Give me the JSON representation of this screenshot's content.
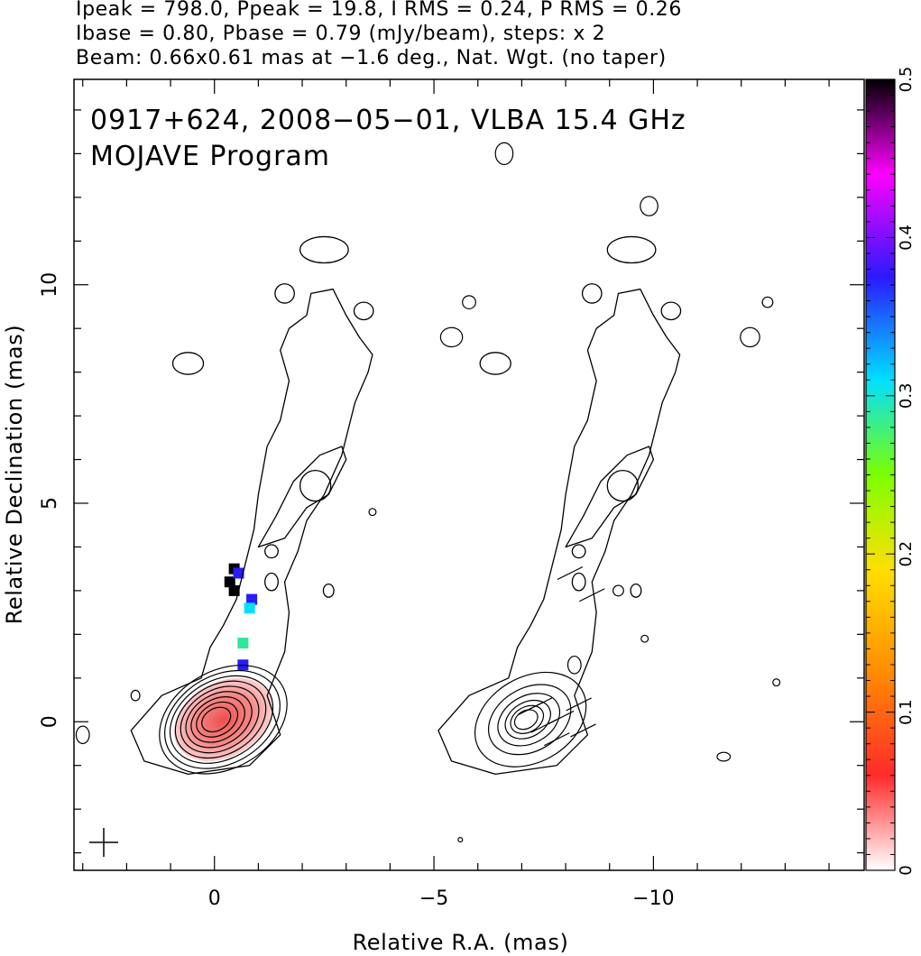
{
  "header": {
    "line1": "Ipeak = 798.0, Ppeak = 19.8, I RMS = 0.24, P RMS = 0.26",
    "line2": "Ibase = 0.80, Pbase = 0.79 (mJy/beam), steps: x 2",
    "line3": "Beam: 0.66x0.61 mas at −1.6 deg., Nat. Wgt. (no taper)"
  },
  "annotations": {
    "source": "0917+624, 2008−05−01, VLBA 15.4 GHz",
    "program": "MOJAVE Program"
  },
  "chart_data": {
    "type": "contour",
    "xlabel": "Relative R.A. (mas)",
    "ylabel": "Relative Declination (mas)",
    "xlim": [
      3.2,
      -14.8
    ],
    "ylim": [
      -3.4,
      14.7
    ],
    "x_ticks": [
      {
        "value": 0,
        "label": "0"
      },
      {
        "value": -5,
        "label": "−5"
      },
      {
        "value": -10,
        "label": "−10"
      }
    ],
    "y_ticks": [
      {
        "value": 0,
        "label": "0"
      },
      {
        "value": 5,
        "label": "5"
      },
      {
        "value": 10,
        "label": "10"
      }
    ],
    "colorbar": {
      "range": [
        0,
        0.5
      ],
      "ticks": [
        "0",
        "0.1",
        "0.2",
        "0.3",
        "0.4",
        "0.5"
      ],
      "stops": [
        "#ffffff",
        "#ff2a2a",
        "#ff8c00",
        "#ffdf00",
        "#7cff00",
        "#00e0ff",
        "#2a1aff",
        "#ff00ff",
        "#000000"
      ]
    },
    "core_center": [
      0,
      0
    ],
    "right_panel_offset": -7.0,
    "contour_peak_mJy": 798.0,
    "contour_base_mJy": 0.8,
    "contour_step": 2,
    "polarized_core_color": "#ec3c3c",
    "contour_color": "#000000"
  }
}
